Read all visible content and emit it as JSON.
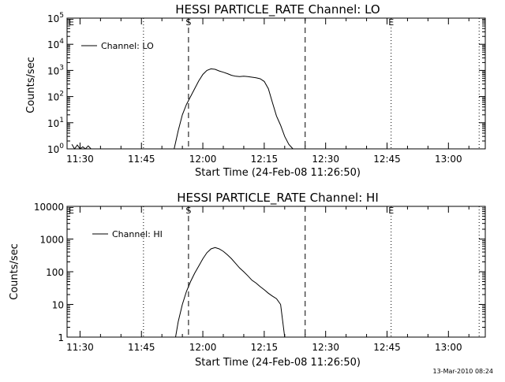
{
  "chart_data": [
    {
      "type": "line",
      "title": "HESSI PARTICLE_RATE Channel: LO",
      "xlabel": "Start Time (24-Feb-08 11:26:50)",
      "ylabel": "Counts/sec",
      "yscale": "log",
      "xlim": [
        "11:26:50",
        "13:09:00"
      ],
      "ylim": [
        1,
        100000
      ],
      "x_ticks": [
        "11:30",
        "11:45",
        "12:00",
        "12:15",
        "12:30",
        "12:45",
        "13:00"
      ],
      "y_ticks": [
        "10^0",
        "10^1",
        "10^2",
        "10^3",
        "10^4",
        "10^5"
      ],
      "legend": {
        "label": "Channel: LO",
        "position": "top-left"
      },
      "markers": [
        {
          "label": "E",
          "time": "11:26:50",
          "style": "dotted"
        },
        {
          "label": "",
          "time": "11:45:30",
          "style": "dotted"
        },
        {
          "label": "S",
          "time": "11:56:30",
          "style": "dashed"
        },
        {
          "label": "",
          "time": "12:25:00",
          "style": "dashed"
        },
        {
          "label": "E",
          "time": "12:46:00",
          "style": "dotted"
        },
        {
          "label": "",
          "time": "13:07:30",
          "style": "dotted"
        }
      ],
      "series": [
        {
          "name": "Channel: LO",
          "x": [
            "11:28:00",
            "11:28:40",
            "11:29:20",
            "11:30:00",
            "11:30:40",
            "11:31:20",
            "11:32:00",
            "11:32:40",
            "11:53:00",
            "11:54:00",
            "11:55:00",
            "11:56:00",
            "11:57:00",
            "11:58:00",
            "11:59:00",
            "12:00:00",
            "12:01:00",
            "12:02:00",
            "12:03:00",
            "12:04:00",
            "12:05:00",
            "12:06:00",
            "12:07:00",
            "12:08:00",
            "12:09:00",
            "12:10:00",
            "12:11:00",
            "12:12:00",
            "12:13:00",
            "12:14:00",
            "12:15:00",
            "12:16:00",
            "12:17:00",
            "12:18:00",
            "12:19:00",
            "12:20:00",
            "12:21:00",
            "12:22:00"
          ],
          "y": [
            1.5,
            1.0,
            1.4,
            1.0,
            1.2,
            1.0,
            1.3,
            1.0,
            1.0,
            5,
            20,
            50,
            100,
            200,
            400,
            700,
            1000,
            1150,
            1100,
            950,
            850,
            750,
            650,
            600,
            580,
            600,
            580,
            550,
            520,
            480,
            380,
            200,
            60,
            18,
            8,
            3,
            1.5,
            1.0
          ]
        }
      ]
    },
    {
      "type": "line",
      "title": "HESSI PARTICLE_RATE Channel: HI",
      "xlabel": "Start Time (24-Feb-08 11:26:50)",
      "ylabel": "Counts/sec",
      "yscale": "log",
      "xlim": [
        "11:26:50",
        "13:09:00"
      ],
      "ylim": [
        1,
        10000
      ],
      "x_ticks": [
        "11:30",
        "11:45",
        "12:00",
        "12:15",
        "12:30",
        "12:45",
        "13:00"
      ],
      "y_ticks": [
        "1",
        "10",
        "100",
        "1000",
        "10000"
      ],
      "legend": {
        "label": "Channel: HI",
        "position": "top-left"
      },
      "markers": [
        {
          "label": "E",
          "time": "11:26:50",
          "style": "dotted"
        },
        {
          "label": "",
          "time": "11:45:30",
          "style": "dotted"
        },
        {
          "label": "S",
          "time": "11:56:30",
          "style": "dashed"
        },
        {
          "label": "",
          "time": "12:25:00",
          "style": "dashed"
        },
        {
          "label": "E",
          "time": "12:46:00",
          "style": "dotted"
        },
        {
          "label": "",
          "time": "13:07:30",
          "style": "dotted"
        }
      ],
      "series": [
        {
          "name": "Channel: HI",
          "x": [
            "11:53:20",
            "11:54:00",
            "11:55:00",
            "11:56:00",
            "11:57:00",
            "11:58:00",
            "11:59:00",
            "12:00:00",
            "12:01:00",
            "12:02:00",
            "12:03:00",
            "12:04:00",
            "12:05:00",
            "12:06:00",
            "12:07:00",
            "12:08:00",
            "12:09:00",
            "12:10:00",
            "12:11:00",
            "12:12:00",
            "12:13:00",
            "12:14:00",
            "12:15:00",
            "12:16:00",
            "12:17:00",
            "12:18:00",
            "12:19:00",
            "12:20:00"
          ],
          "y": [
            1.0,
            3,
            10,
            25,
            50,
            90,
            150,
            250,
            380,
            500,
            550,
            500,
            420,
            330,
            250,
            180,
            130,
            100,
            75,
            55,
            45,
            35,
            28,
            22,
            18,
            15,
            10,
            1.0
          ]
        }
      ]
    }
  ],
  "footer": {
    "timestamp": "13-Mar-2010 08:24"
  }
}
